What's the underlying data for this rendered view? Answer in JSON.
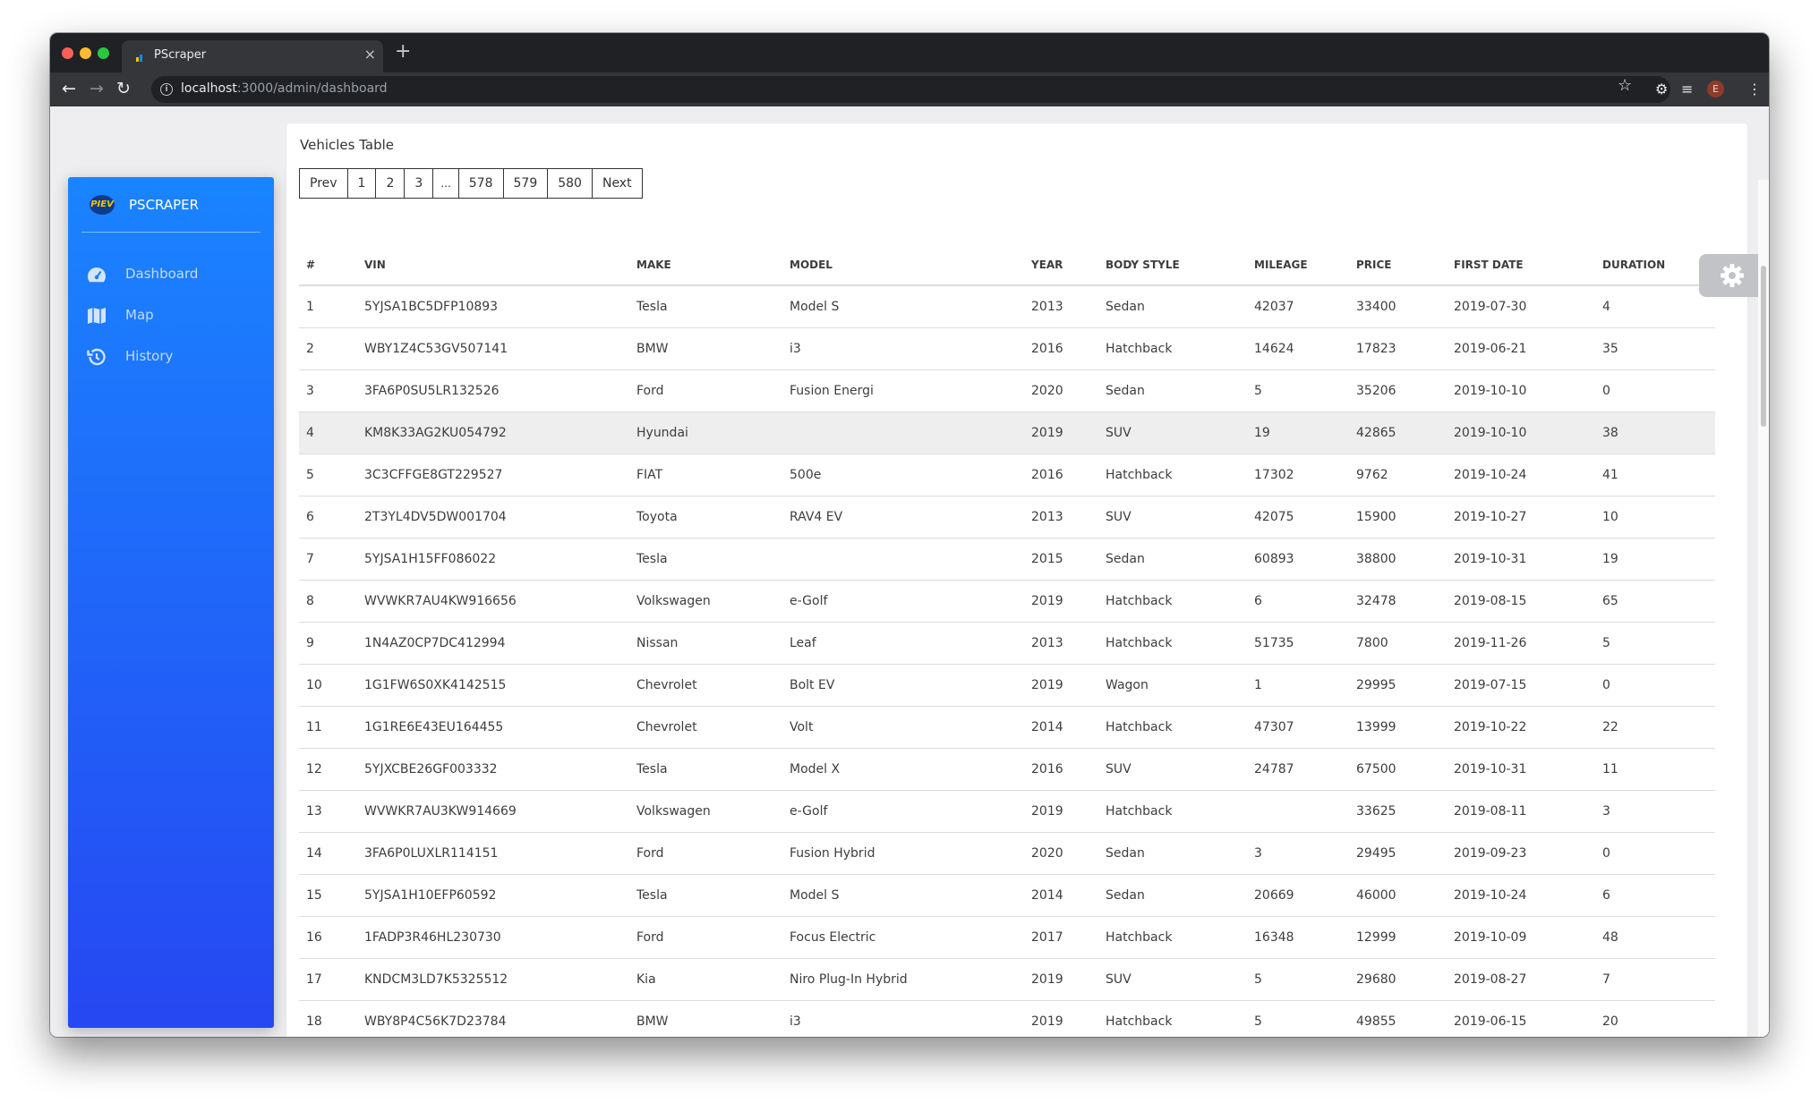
{
  "browser": {
    "tab_title": "PScraper",
    "new_tab_label": "+",
    "close_tab_label": "×",
    "url_host": "localhost",
    "url_path": ":3000/admin/dashboard",
    "profile_initial": "E"
  },
  "sidebar": {
    "brand": "PSCRAPER",
    "brand_logo_text": "PIEV",
    "items": [
      {
        "label": "Dashboard",
        "icon": "dashboard-icon"
      },
      {
        "label": "Map",
        "icon": "map-icon"
      },
      {
        "label": "History",
        "icon": "history-icon"
      }
    ]
  },
  "main": {
    "title": "Vehicles Table",
    "pagination": [
      "Prev",
      "1",
      "2",
      "3",
      "...",
      "578",
      "579",
      "580",
      "Next"
    ],
    "columns": [
      "#",
      "VIN",
      "MAKE",
      "MODEL",
      "YEAR",
      "BODY STYLE",
      "MILEAGE",
      "PRICE",
      "FIRST DATE",
      "DURATION"
    ],
    "rows": [
      [
        "1",
        "5YJSA1BC5DFP10893",
        "Tesla",
        "Model S",
        "2013",
        "Sedan",
        "42037",
        "33400",
        "2019-07-30",
        "4"
      ],
      [
        "2",
        "WBY1Z4C53GV507141",
        "BMW",
        "i3",
        "2016",
        "Hatchback",
        "14624",
        "17823",
        "2019-06-21",
        "35"
      ],
      [
        "3",
        "3FA6P0SU5LR132526",
        "Ford",
        "Fusion Energi",
        "2020",
        "Sedan",
        "5",
        "35206",
        "2019-10-10",
        "0"
      ],
      [
        "4",
        "KM8K33AG2KU054792",
        "Hyundai",
        "",
        "2019",
        "SUV",
        "19",
        "42865",
        "2019-10-10",
        "38"
      ],
      [
        "5",
        "3C3CFFGE8GT229527",
        "FIAT",
        "500e",
        "2016",
        "Hatchback",
        "17302",
        "9762",
        "2019-10-24",
        "41"
      ],
      [
        "6",
        "2T3YL4DV5DW001704",
        "Toyota",
        "RAV4 EV",
        "2013",
        "SUV",
        "42075",
        "15900",
        "2019-10-27",
        "10"
      ],
      [
        "7",
        "5YJSA1H15FF086022",
        "Tesla",
        "",
        "2015",
        "Sedan",
        "60893",
        "38800",
        "2019-10-31",
        "19"
      ],
      [
        "8",
        "WVWKR7AU4KW916656",
        "Volkswagen",
        "e-Golf",
        "2019",
        "Hatchback",
        "6",
        "32478",
        "2019-08-15",
        "65"
      ],
      [
        "9",
        "1N4AZ0CP7DC412994",
        "Nissan",
        "Leaf",
        "2013",
        "Hatchback",
        "51735",
        "7800",
        "2019-11-26",
        "5"
      ],
      [
        "10",
        "1G1FW6S0XK4142515",
        "Chevrolet",
        "Bolt EV",
        "2019",
        "Wagon",
        "1",
        "29995",
        "2019-07-15",
        "0"
      ],
      [
        "11",
        "1G1RE6E43EU164455",
        "Chevrolet",
        "Volt",
        "2014",
        "Hatchback",
        "47307",
        "13999",
        "2019-10-22",
        "22"
      ],
      [
        "12",
        "5YJXCBE26GF003332",
        "Tesla",
        "Model X",
        "2016",
        "SUV",
        "24787",
        "67500",
        "2019-10-31",
        "11"
      ],
      [
        "13",
        "WVWKR7AU3KW914669",
        "Volkswagen",
        "e-Golf",
        "2019",
        "Hatchback",
        "",
        "33625",
        "2019-08-11",
        "3"
      ],
      [
        "14",
        "3FA6P0LUXLR114151",
        "Ford",
        "Fusion Hybrid",
        "2020",
        "Sedan",
        "3",
        "29495",
        "2019-09-23",
        "0"
      ],
      [
        "15",
        "5YJSA1H10EFP60592",
        "Tesla",
        "Model S",
        "2014",
        "Sedan",
        "20669",
        "46000",
        "2019-10-24",
        "6"
      ],
      [
        "16",
        "1FADP3R46HL230730",
        "Ford",
        "Focus Electric",
        "2017",
        "Hatchback",
        "16348",
        "12999",
        "2019-10-09",
        "48"
      ],
      [
        "17",
        "KNDCM3LD7K5325512",
        "Kia",
        "Niro Plug-In Hybrid",
        "2019",
        "SUV",
        "5",
        "29680",
        "2019-08-27",
        "7"
      ],
      [
        "18",
        "WBY8P4C56K7D23784",
        "BMW",
        "i3",
        "2019",
        "Hatchback",
        "5",
        "49855",
        "2019-06-15",
        "20"
      ]
    ]
  },
  "colors": {
    "sidebar_top": "#1a84ff",
    "sidebar_bottom": "#2647f2",
    "highlight_row": "#eeeeee"
  }
}
